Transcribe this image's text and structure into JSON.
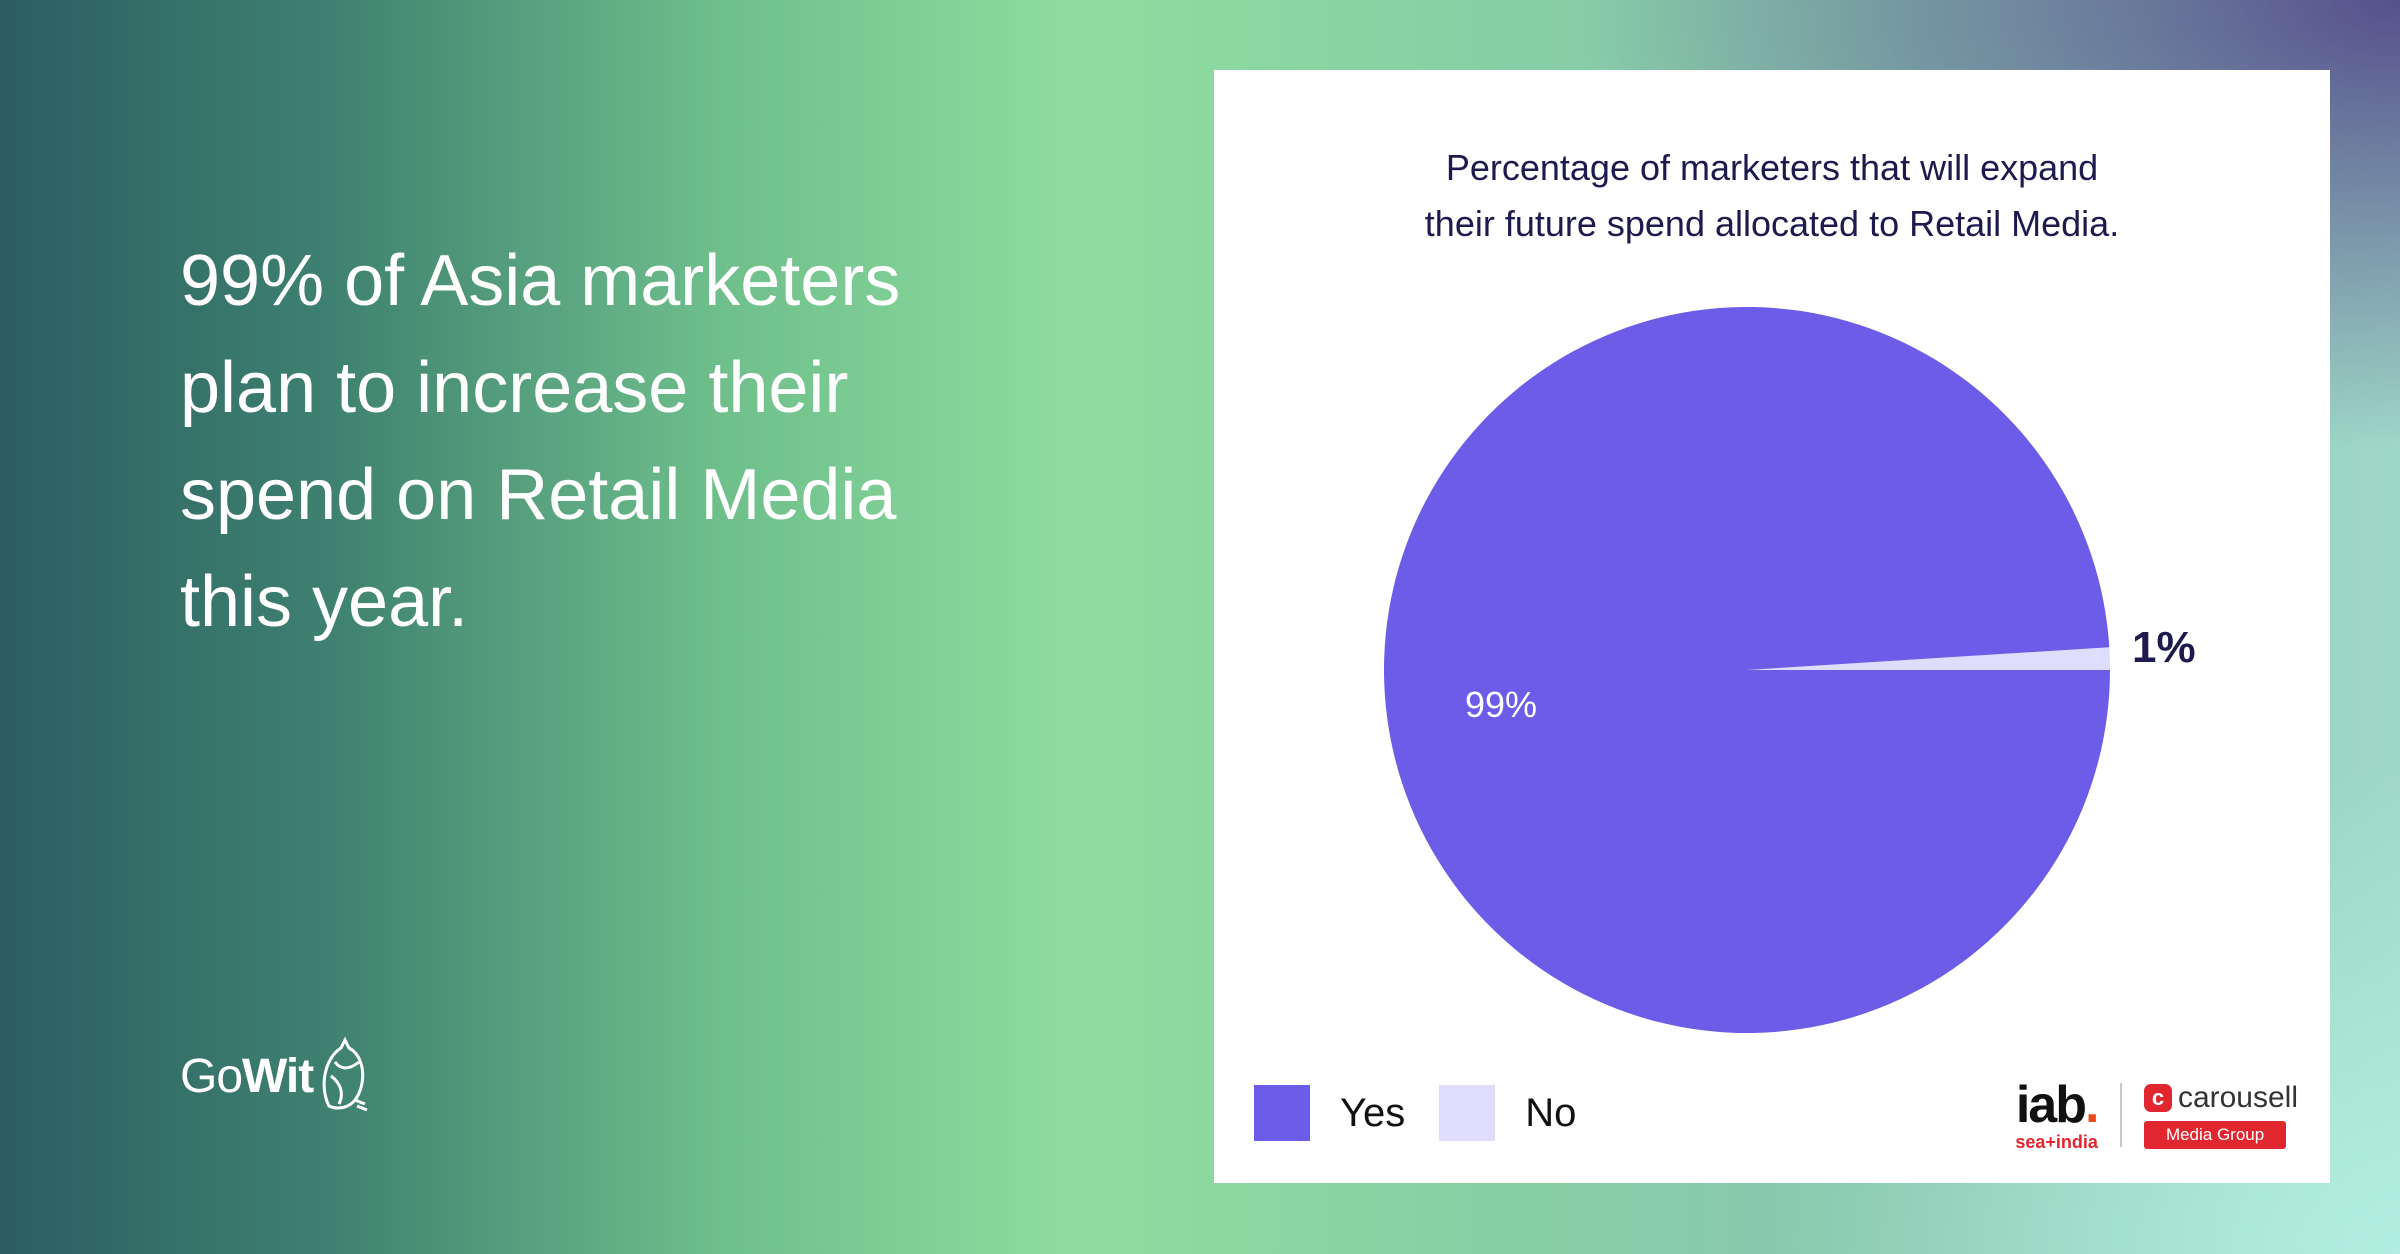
{
  "headline": {
    "line1": "99% of Asia marketers",
    "line2": "plan to increase their",
    "line3": "spend on Retail Media",
    "line4": "this year."
  },
  "brand": {
    "logo_light": "Go",
    "logo_bold": "Wit",
    "icon": "owl-icon"
  },
  "colors": {
    "yes": "#6c5ce7",
    "no": "#e0dcfb",
    "title": "#1e1a4e"
  },
  "partners": {
    "iab_word": "iab",
    "iab_dot": ".",
    "iab_sub": "sea+india",
    "carousell_icon": "c",
    "carousell_word": "carousell",
    "carousell_badge": "Media Group"
  },
  "chart_data": {
    "type": "pie",
    "title_line1": "Percentage of marketers that will expand",
    "title_line2": "their future spend allocated to Retail Media.",
    "categories": [
      "Yes",
      "No"
    ],
    "values": [
      99,
      1
    ],
    "data_labels": [
      "99%",
      "1%"
    ],
    "legend": [
      "Yes",
      "No"
    ],
    "legend_position": "bottom-left"
  }
}
